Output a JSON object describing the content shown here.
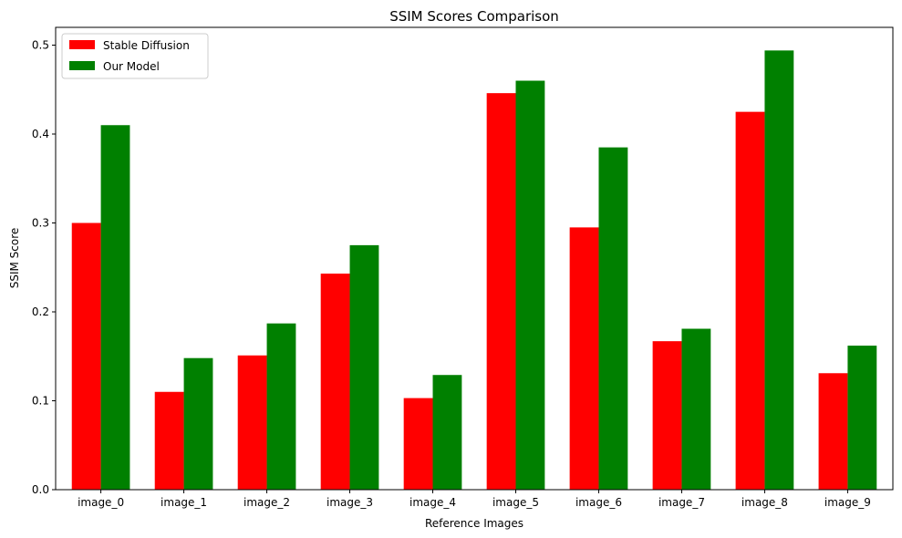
{
  "chart_data": {
    "type": "bar",
    "title": "SSIM Scores Comparison",
    "xlabel": "Reference Images",
    "ylabel": "SSIM Score",
    "categories": [
      "image_0",
      "image_1",
      "image_2",
      "image_3",
      "image_4",
      "image_5",
      "image_6",
      "image_7",
      "image_8",
      "image_9"
    ],
    "series": [
      {
        "name": "Stable Diffusion",
        "color": "#ff0000",
        "values": [
          0.3,
          0.11,
          0.151,
          0.243,
          0.103,
          0.446,
          0.295,
          0.167,
          0.425,
          0.131
        ]
      },
      {
        "name": "Our Model",
        "color": "#008000",
        "values": [
          0.41,
          0.148,
          0.187,
          0.275,
          0.129,
          0.46,
          0.385,
          0.181,
          0.494,
          0.162
        ]
      }
    ],
    "ylim": [
      0,
      0.52
    ],
    "yticks": [
      "0.0",
      "0.1",
      "0.2",
      "0.3",
      "0.4",
      "0.5"
    ],
    "legend_position": "top-left",
    "grid": false
  }
}
